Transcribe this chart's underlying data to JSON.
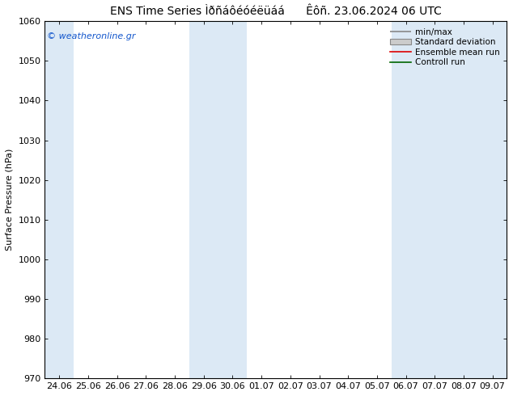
{
  "title": "ENS Time Series Ìðñáôéóéëüáá      Êôñ. 23.06.2024 06 UTC",
  "ylabel": "Surface Pressure (hPa)",
  "ylim": [
    970,
    1060
  ],
  "yticks": [
    970,
    980,
    990,
    1000,
    1010,
    1020,
    1030,
    1040,
    1050,
    1060
  ],
  "xtick_labels": [
    "24.06",
    "25.06",
    "26.06",
    "27.06",
    "28.06",
    "29.06",
    "30.06",
    "01.07",
    "02.07",
    "03.07",
    "04.07",
    "05.07",
    "06.07",
    "07.07",
    "08.07",
    "09.07"
  ],
  "watermark": "© weatheronline.gr",
  "bg_color": "#ffffff",
  "plot_bg_color": "#ffffff",
  "band_color": "#dce9f5",
  "legend_items": [
    "min/max",
    "Standard deviation",
    "Ensemble mean run",
    "Controll run"
  ],
  "legend_line_colors": [
    "#888888",
    "#bbbbbb",
    "#dd0000",
    "#006600"
  ],
  "title_fontsize": 10,
  "label_fontsize": 8,
  "tick_fontsize": 8,
  "blue_band_indices": [
    0,
    5,
    6,
    12,
    13,
    14,
    15
  ]
}
